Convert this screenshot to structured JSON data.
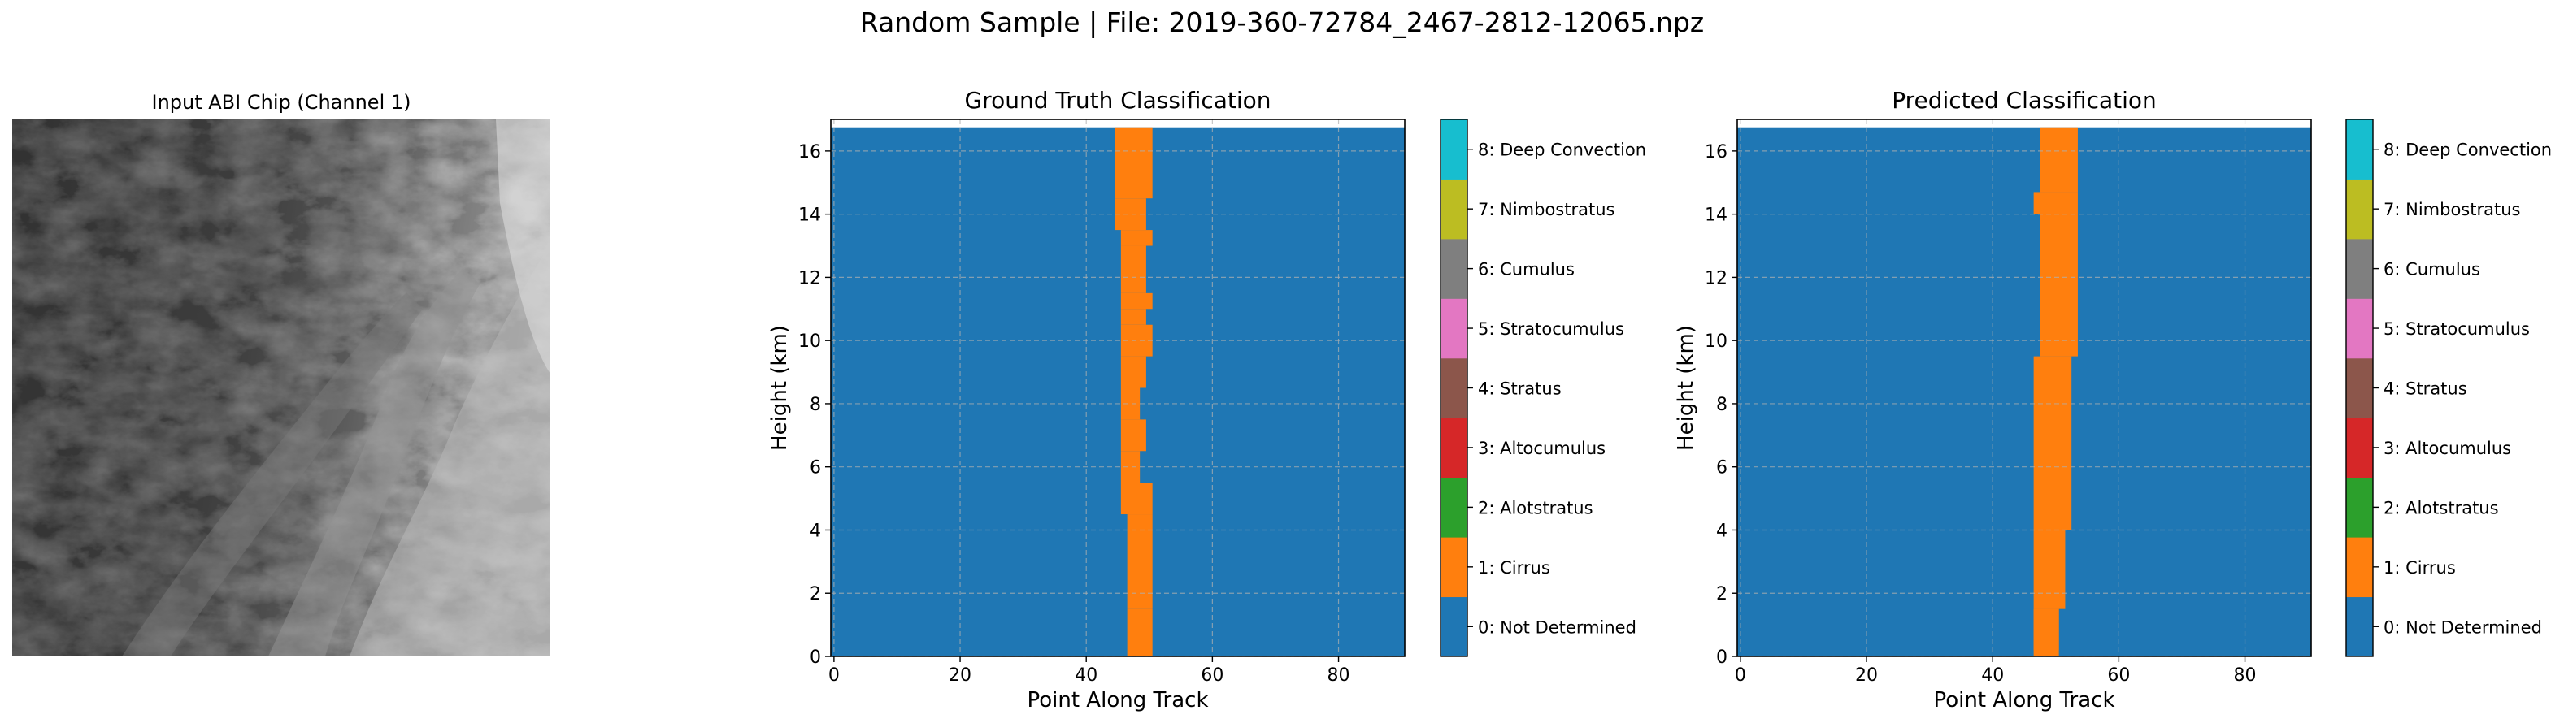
{
  "figure": {
    "suptitle": "Random Sample | File: 2019-360-72784_2467-2812-12065.npz"
  },
  "image_panel": {
    "title": "Input ABI Chip (Channel 1)",
    "colormap": "gray"
  },
  "legend_classes": [
    {
      "label": "0: Not Determined",
      "color": "#1f77b4"
    },
    {
      "label": "1: Cirrus",
      "color": "#ff7f0e"
    },
    {
      "label": "2: Alotstratus",
      "color": "#2ca02c"
    },
    {
      "label": "3: Altocumulus",
      "color": "#d62728"
    },
    {
      "label": "4: Stratus",
      "color": "#8c564b"
    },
    {
      "label": "5: Stratocumulus",
      "color": "#e377c2"
    },
    {
      "label": "6: Cumulus",
      "color": "#7f7f7f"
    },
    {
      "label": "7: Nimbostratus",
      "color": "#bcbd22"
    },
    {
      "label": "8: Deep Convection",
      "color": "#17becf"
    }
  ],
  "chart_data": [
    {
      "type": "heatmap",
      "title": "Ground Truth Classification",
      "xlabel": "Point Along Track",
      "ylabel": "Height (km)",
      "xlim": [
        -0.5,
        90.5
      ],
      "ylim": [
        0,
        17
      ],
      "top_data_height_km": 16.75,
      "xticks": [
        0,
        20,
        40,
        60,
        80
      ],
      "yticks": [
        0,
        2,
        4,
        6,
        8,
        10,
        12,
        14,
        16
      ],
      "grid": true,
      "background_class": 0,
      "cirrus_band": [
        {
          "y0": 0,
          "y1": 1.5,
          "x0": 46.5,
          "x1": 50.5
        },
        {
          "y0": 1.5,
          "y1": 4.5,
          "x0": 46.5,
          "x1": 50.5
        },
        {
          "y0": 4.5,
          "y1": 5.5,
          "x0": 45.5,
          "x1": 50.5
        },
        {
          "y0": 5.5,
          "y1": 6.5,
          "x0": 45.5,
          "x1": 48.5
        },
        {
          "y0": 6.5,
          "y1": 7.5,
          "x0": 45.5,
          "x1": 49.5
        },
        {
          "y0": 7.5,
          "y1": 8.5,
          "x0": 45.5,
          "x1": 48.5
        },
        {
          "y0": 8.5,
          "y1": 9.5,
          "x0": 45.5,
          "x1": 49.5
        },
        {
          "y0": 9.5,
          "y1": 10.5,
          "x0": 45.5,
          "x1": 50.5
        },
        {
          "y0": 10.5,
          "y1": 11.0,
          "x0": 45.5,
          "x1": 49.5
        },
        {
          "y0": 11.0,
          "y1": 11.5,
          "x0": 45.5,
          "x1": 50.5
        },
        {
          "y0": 11.5,
          "y1": 13.0,
          "x0": 45.5,
          "x1": 49.5
        },
        {
          "y0": 13.0,
          "y1": 13.5,
          "x0": 45.5,
          "x1": 50.5
        },
        {
          "y0": 13.5,
          "y1": 14.5,
          "x0": 44.5,
          "x1": 49.5
        },
        {
          "y0": 14.5,
          "y1": 16.75,
          "x0": 44.5,
          "x1": 50.5
        }
      ]
    },
    {
      "type": "heatmap",
      "title": "Predicted Classification",
      "xlabel": "Point Along Track",
      "ylabel": "Height (km)",
      "xlim": [
        -0.5,
        90.5
      ],
      "ylim": [
        0,
        17
      ],
      "top_data_height_km": 16.75,
      "xticks": [
        0,
        20,
        40,
        60,
        80
      ],
      "yticks": [
        0,
        2,
        4,
        6,
        8,
        10,
        12,
        14,
        16
      ],
      "grid": true,
      "background_class": 0,
      "cirrus_band": [
        {
          "y0": 0,
          "y1": 1.5,
          "x0": 46.5,
          "x1": 50.5
        },
        {
          "y0": 0.2,
          "y1": 1.5,
          "x0": 46.5,
          "x1": 50.5
        },
        {
          "y0": 1.5,
          "y1": 4.0,
          "x0": 46.5,
          "x1": 51.5
        },
        {
          "y0": 4.0,
          "y1": 9.5,
          "x0": 46.5,
          "x1": 52.5
        },
        {
          "y0": 9.5,
          "y1": 14.0,
          "x0": 47.5,
          "x1": 53.5
        },
        {
          "y0": 14.0,
          "y1": 14.7,
          "x0": 46.5,
          "x1": 53.5
        },
        {
          "y0": 14.7,
          "y1": 16.75,
          "x0": 47.5,
          "x1": 53.5
        }
      ]
    }
  ]
}
